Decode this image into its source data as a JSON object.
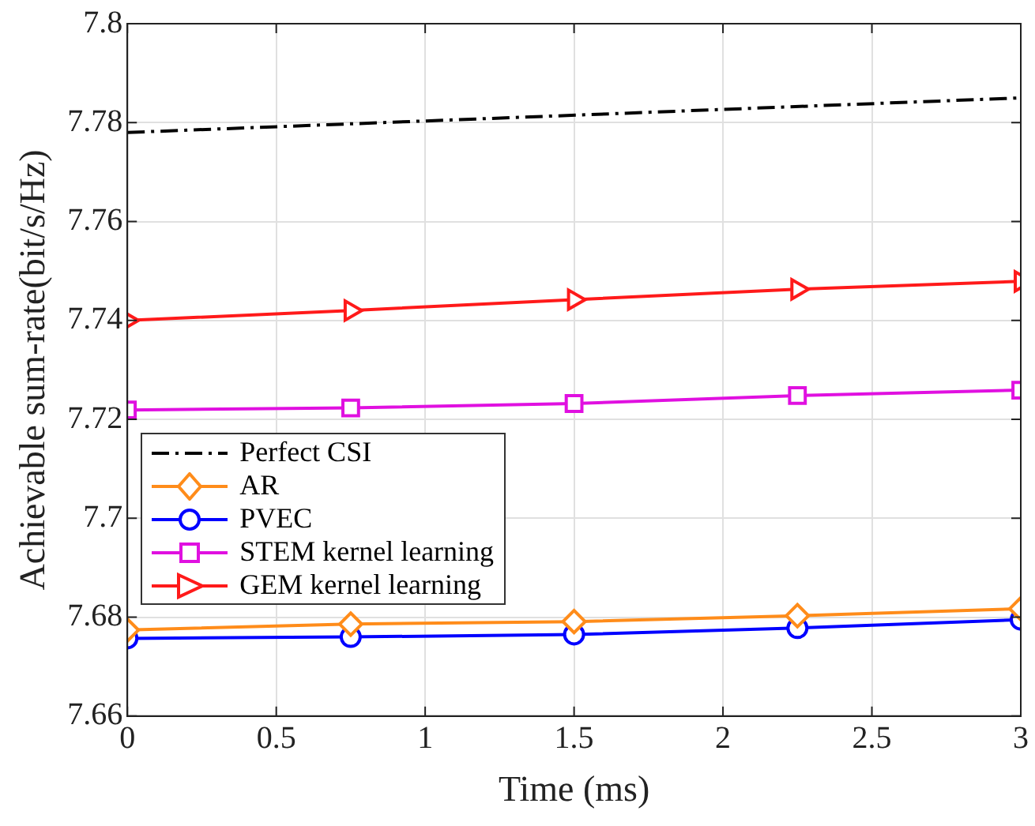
{
  "chart_data": {
    "type": "line",
    "xlabel": "Time (ms)",
    "ylabel": "Achievable sum-rate(bit/s/Hz)",
    "x": [
      0,
      0.75,
      1.5,
      2.25,
      3
    ],
    "xlim": [
      0,
      3
    ],
    "xticks": [
      0,
      0.5,
      1,
      1.5,
      2,
      2.5,
      3
    ],
    "ylim": [
      7.66,
      7.8
    ],
    "yticks": [
      7.66,
      7.68,
      7.7,
      7.72,
      7.74,
      7.76,
      7.78,
      7.8
    ],
    "grid": true,
    "legend": "left",
    "series": [
      {
        "name": "Perfect CSI",
        "color": "#000000",
        "x": [
          0,
          3
        ],
        "values": [
          7.778,
          7.785
        ],
        "marker": "none",
        "line_style": "dashdot"
      },
      {
        "name": "AR",
        "color": "#ff8c1a",
        "values": [
          7.6774,
          7.6786,
          7.6791,
          7.6803,
          7.6817
        ],
        "marker": "diamond",
        "line_style": "solid"
      },
      {
        "name": "PVEC",
        "color": "#0000ff",
        "values": [
          7.6757,
          7.676,
          7.6765,
          7.6778,
          7.6795
        ],
        "marker": "circle",
        "line_style": "solid"
      },
      {
        "name": "STEM kernel learning",
        "color": "#e010e0",
        "values": [
          7.7219,
          7.7223,
          7.7232,
          7.7248,
          7.7259
        ],
        "marker": "square",
        "line_style": "solid"
      },
      {
        "name": "GEM kernel learning",
        "color": "#ff1a1a",
        "values": [
          7.74,
          7.742,
          7.7442,
          7.7463,
          7.7479
        ],
        "marker": "triangle",
        "line_style": "solid"
      }
    ]
  }
}
